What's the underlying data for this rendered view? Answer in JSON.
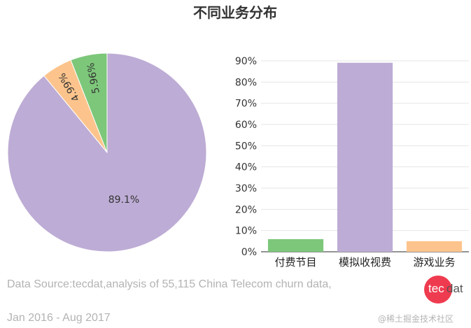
{
  "chart_title": "不同业务分布",
  "colors": {
    "green": "#7dc77a",
    "orange": "#fcc48c",
    "purple": "#bdacd5",
    "axis": "#555555",
    "grid": "#e6e6e6"
  },
  "chart_data": [
    {
      "type": "pie",
      "categories": [
        "模拟收视费",
        "游戏业务",
        "付费节目"
      ],
      "values": [
        89.1,
        4.99,
        5.96
      ],
      "labels": [
        "89.1%",
        "4.99%",
        "5.96%"
      ],
      "colors": [
        "#bdacd5",
        "#fcc48c",
        "#7dc77a"
      ]
    },
    {
      "type": "bar",
      "categories": [
        "付费节目",
        "模拟收视费",
        "游戏业务"
      ],
      "values": [
        5.96,
        89.1,
        4.99
      ],
      "colors": [
        "#7dc77a",
        "#bdacd5",
        "#fcc48c"
      ],
      "ylim": [
        0,
        90
      ],
      "yticks": [
        "0%",
        "10%",
        "20%",
        "30%",
        "40%",
        "50%",
        "60%",
        "70%",
        "80%",
        "90%"
      ],
      "grid": true
    }
  ],
  "footer": {
    "source_line1": "Data Source:tecdat,analysis of 55,115 China Telecom churn data,",
    "source_line2": "Jan 2016 - Aug 2017",
    "logo_tec": "tec",
    "logo_dat": "dat",
    "watermark": "@稀土掘金技术社区"
  }
}
